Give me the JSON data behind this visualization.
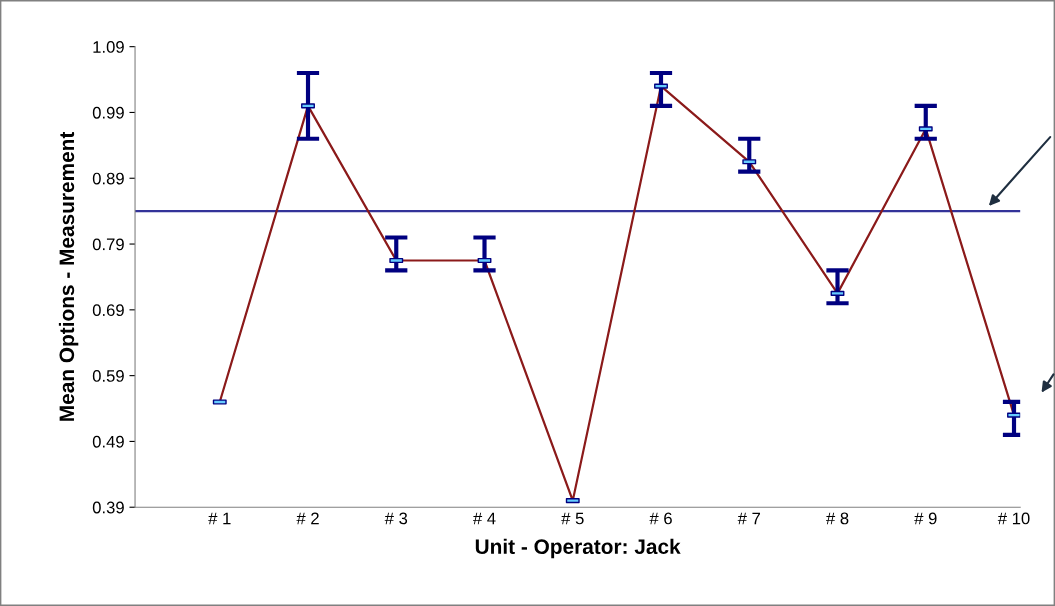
{
  "chart_data": {
    "type": "line",
    "xlabel": "Unit - Operator: Jack",
    "ylabel": "Mean Options - Measurement",
    "categories": [
      "# 1",
      "# 2",
      "# 3",
      "# 4",
      "# 5",
      "# 6",
      "# 7",
      "# 8",
      "# 9",
      "# 10"
    ],
    "series": [
      {
        "color": "#8b1a1a",
        "values": [
          0.55,
          1.0,
          0.765,
          0.765,
          0.4,
          1.03,
          0.915,
          0.715,
          0.965,
          0.53
        ],
        "errors": [
          null,
          [
            0.95,
            1.05
          ],
          [
            0.75,
            0.8
          ],
          [
            0.75,
            0.8
          ],
          null,
          [
            1.0,
            1.05
          ],
          [
            0.9,
            0.95
          ],
          [
            0.7,
            0.75
          ],
          [
            0.95,
            1.0
          ],
          [
            0.5,
            0.55
          ]
        ]
      }
    ],
    "ylim": [
      0.39,
      1.09
    ],
    "yticks": [
      0.39,
      0.49,
      0.59,
      0.69,
      0.79,
      0.89,
      0.99,
      1.09
    ],
    "ref_lines": [
      {
        "axis": "y",
        "value": 0.84,
        "color": "#333399",
        "line_style": "solid"
      }
    ],
    "marker": "square",
    "line_style": "solid",
    "grid": false,
    "legend": false
  }
}
